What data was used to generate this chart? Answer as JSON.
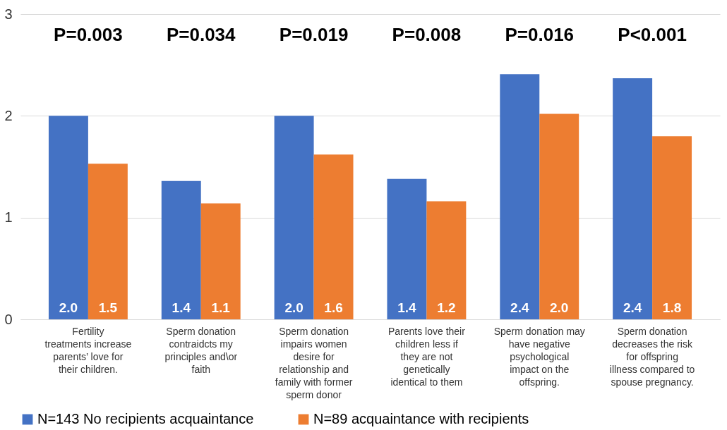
{
  "chart_data": {
    "type": "bar",
    "categories": [
      "Fertility treatments increase parents’ love for their children.",
      "Sperm donation contraidcts my principles and\\or faith",
      "Sperm donation impairs women desire for relationship and family with former sperm donor",
      "Parents love their children less if they are not genetically identical to them",
      "Sperm donation may have negative psychological impact on the offspring.",
      "Sperm donation decreases the risk for offspring illness compared to spouse pregnancy."
    ],
    "series": [
      {
        "name": "N=143 No recipients acquaintance",
        "color": "#4472c4",
        "values": [
          2.0,
          1.36,
          2.0,
          1.38,
          2.41,
          2.37
        ],
        "value_labels": [
          "2.0",
          "1.4",
          "2.0",
          "1.4",
          "2.4",
          "2.4"
        ]
      },
      {
        "name": "N=89 acquaintance with recipients",
        "color": "#ed7d31",
        "values": [
          1.53,
          1.14,
          1.62,
          1.16,
          2.02,
          1.8
        ],
        "value_labels": [
          "1.5",
          "1.1",
          "1.6",
          "1.2",
          "2.0",
          "1.8"
        ]
      }
    ],
    "ylim": [
      0,
      3
    ],
    "yticks": [
      0,
      1,
      2,
      3
    ],
    "grid": "y",
    "legend": "bottom",
    "annotations": [
      "P=0.003",
      "P=0.034",
      "P=0.019",
      "P=0.008",
      "P=0.016",
      "P<0.001"
    ]
  }
}
